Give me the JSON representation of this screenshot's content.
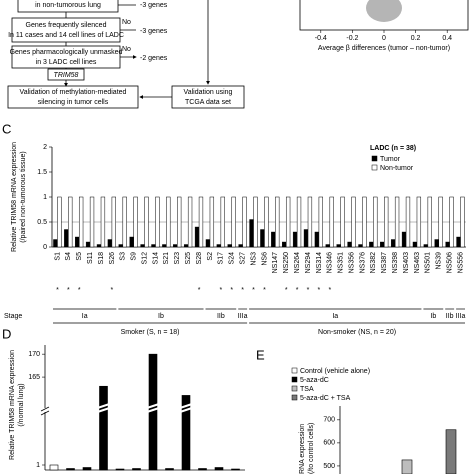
{
  "flowchart": {
    "boxes": [
      [
        "in non-tumorous lung"
      ],
      [
        "Genes frequently silenced",
        "In 11 cases and 14 cell lines of LADC"
      ],
      [
        "Genes pharmacologically unmasked",
        "in 3 LADC cell lines"
      ],
      [
        "TRIM58"
      ],
      [
        "Validation of methylation-mediated",
        "silencing in tumor cells"
      ],
      [
        "Validation using",
        "TCGA data set"
      ]
    ],
    "no": [
      "No",
      "No"
    ],
    "removed": [
      "-3 genes",
      "-3 genes",
      "-2 genes"
    ]
  },
  "panel_b": {
    "x_label": "Average β differences (tumor – non-tumor)",
    "xlim": [
      -0.5,
      0.5
    ],
    "xticks": [
      -0.4,
      -0.2,
      0,
      0.2,
      0.4
    ]
  },
  "panel_c": {
    "label": "C",
    "y_label": [
      "Relative TRIM58 mRNA expression",
      "(/paired non-tumorous tissue)"
    ],
    "ylim": [
      0,
      2
    ],
    "yticks": [
      0,
      0.5,
      1,
      1.5,
      2
    ],
    "legend_title": "LADC (n = 38)",
    "series": [
      {
        "name": "Tumor",
        "color": "#000000"
      },
      {
        "name": "Non-tumor",
        "color": "#ffffff"
      }
    ],
    "stage_label": "Stage",
    "groups": [
      {
        "name": "Smoker (S, n = 18)",
        "stages": [
          {
            "stage": "Ia",
            "samples": [
              "S1",
              "S4",
              "S5",
              "S11",
              "S18",
              "S26"
            ],
            "tumor": [
              0.15,
              0.35,
              0.2,
              0.1,
              0.05,
              0.15
            ],
            "non_tumor": [
              1,
              1,
              1,
              1,
              1,
              1
            ],
            "stars": [
              "*",
              "*",
              "*",
              null,
              null,
              "*"
            ]
          },
          {
            "stage": "Ib",
            "samples": [
              "S3",
              "S9",
              "S12",
              "S14",
              "S21",
              "S23",
              "S25",
              "S28"
            ],
            "tumor": [
              0.05,
              0.2,
              0.05,
              0.05,
              0.05,
              0.05,
              0.05,
              0.4
            ],
            "non_tumor": [
              1,
              1,
              1,
              1,
              1,
              1,
              1,
              1
            ],
            "stars": [
              null,
              null,
              null,
              null,
              null,
              null,
              null,
              "*"
            ]
          },
          {
            "stage": "IIb",
            "samples": [
              "S2",
              "S17",
              "S24"
            ],
            "tumor": [
              0.15,
              0.05,
              0.05
            ],
            "non_tumor": [
              1,
              1,
              1
            ],
            "stars": [
              null,
              "*",
              "*"
            ]
          },
          {
            "stage": "IIIa",
            "samples": [
              "S27"
            ],
            "tumor": [
              0.05
            ],
            "non_tumor": [
              1
            ],
            "stars": [
              "*"
            ]
          }
        ]
      },
      {
        "name": "Non-smoker (NS, n = 20)",
        "stages": [
          {
            "stage": "Ia",
            "samples": [
              "NS3",
              "NS6",
              "NS147",
              "NS250",
              "NS264",
              "NS294",
              "NS314",
              "NS346",
              "NS351",
              "NS356",
              "NS376",
              "NS382",
              "NS387",
              "NS398",
              "NS403",
              "NS463"
            ],
            "tumor": [
              0.55,
              0.35,
              0.3,
              0.1,
              0.3,
              0.35,
              0.3,
              0.05,
              0.05,
              0.1,
              0.05,
              0.1,
              0.1,
              0.15,
              0.3,
              0.1
            ],
            "non_tumor": [
              1,
              1,
              1,
              1,
              1,
              1,
              1,
              1,
              1,
              1,
              1,
              1,
              1,
              1,
              1,
              1
            ],
            "stars": [
              "*",
              "*",
              null,
              "*",
              "*",
              "*",
              "*",
              "*",
              null,
              null,
              null,
              null,
              null,
              null,
              null,
              null
            ]
          },
          {
            "stage": "Ib",
            "samples": [
              "NS501",
              "NS39"
            ],
            "tumor": [
              0.05,
              0.15
            ],
            "non_tumor": [
              1,
              1
            ],
            "stars": [
              null,
              null
            ]
          },
          {
            "stage": "IIb",
            "samples": [
              "NS506"
            ],
            "tumor": [
              0.1
            ],
            "non_tumor": [
              1
            ],
            "stars": [
              null
            ]
          },
          {
            "stage": "IIIa",
            "samples": [
              "NS556"
            ],
            "tumor": [
              0.2
            ],
            "non_tumor": [
              1
            ],
            "stars": [
              null
            ]
          }
        ]
      }
    ]
  },
  "panel_d": {
    "label": "D",
    "y_label": [
      "Relative TRIM58 mRNA expression",
      "(/normal lung)"
    ],
    "ylim_lower": [
      0,
      12
    ],
    "ylim_upper": [
      160,
      172
    ],
    "yticks": [
      1,
      165,
      170
    ],
    "values": [
      1,
      0.3,
      0.5,
      163,
      0.2,
      0.3,
      170,
      0.3,
      161,
      0.3,
      0.5,
      0.2
    ],
    "colors": [
      "#ffffff",
      "#000000",
      "#000000",
      "#000000",
      "#000000",
      "#000000",
      "#000000",
      "#000000",
      "#000000",
      "#000000",
      "#000000",
      "#000000"
    ]
  },
  "panel_e": {
    "label": "E",
    "y_label": [
      "RNA expression",
      "(/to control cells)"
    ],
    "legend": [
      {
        "name": "Control (vehicle alone)",
        "color": "#ffffff"
      },
      {
        "name": "5-aza-dC",
        "color": "#000000"
      },
      {
        "name": "TSA",
        "color": "#bdbdbd"
      },
      {
        "name": "5-aza-dC + TSA",
        "color": "#7a7a7a"
      }
    ],
    "ylim": [
      465,
      760
    ],
    "yticks": [
      500,
      600,
      700
    ],
    "bars": [
      {
        "value": 526,
        "color": "#bdbdbd"
      },
      {
        "value": 657,
        "color": "#7a7a7a"
      }
    ]
  }
}
